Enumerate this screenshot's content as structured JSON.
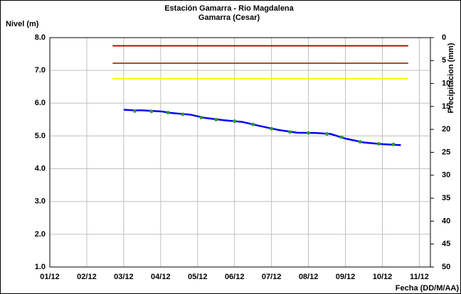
{
  "chart_data": {
    "type": "line",
    "title": "Estación Gamarra - Rio Magdalena",
    "subtitle": "Gamarra (Cesar)",
    "y_label": "Nivel (m)",
    "y2_label": "Precipitacion (mm)",
    "x_label": "Fecha (DD/M/AA)",
    "xlim": [
      1,
      11.3
    ],
    "xticks": [
      {
        "value": 1,
        "label": "01/12"
      },
      {
        "value": 2,
        "label": "02/12"
      },
      {
        "value": 3,
        "label": "03/12"
      },
      {
        "value": 4,
        "label": "04/12"
      },
      {
        "value": 5,
        "label": "05/12"
      },
      {
        "value": 6,
        "label": "06/12"
      },
      {
        "value": 7,
        "label": "07/12"
      },
      {
        "value": 8,
        "label": "08/12"
      },
      {
        "value": 9,
        "label": "09/12"
      },
      {
        "value": 10,
        "label": "10/12"
      },
      {
        "value": 11,
        "label": "11/12"
      }
    ],
    "ylim": [
      1,
      8
    ],
    "yticks": [
      {
        "value": 1,
        "label": "1.0"
      },
      {
        "value": 2,
        "label": "2.0"
      },
      {
        "value": 3,
        "label": "3.0"
      },
      {
        "value": 4,
        "label": "4.0"
      },
      {
        "value": 5,
        "label": "5.0"
      },
      {
        "value": 6,
        "label": "6.0"
      },
      {
        "value": 7,
        "label": "7.0"
      },
      {
        "value": 8,
        "label": "8.0"
      }
    ],
    "y2lim": [
      50,
      0
    ],
    "y2ticks": [
      0,
      5,
      10,
      15,
      20,
      25,
      30,
      35,
      40,
      45,
      50
    ],
    "grid": true,
    "thresholds": [
      {
        "value": 7.75,
        "color": "#cc0000",
        "x": [
          2.7,
          10.7
        ]
      },
      {
        "value": 7.22,
        "color": "#a0522d",
        "x": [
          2.7,
          10.7
        ]
      },
      {
        "value": 6.75,
        "color": "#ffff00",
        "x": [
          2.7,
          10.7
        ]
      }
    ],
    "series": [
      {
        "color": "#0000ff",
        "style": "line",
        "x": [
          3.0,
          3.3,
          3.5,
          4.0,
          4.3,
          4.8,
          5.2,
          5.7,
          6.2,
          6.7,
          7.2,
          7.7,
          8.2,
          8.6,
          9.0,
          9.5,
          10.0,
          10.5
        ],
        "values": [
          5.8,
          5.78,
          5.78,
          5.75,
          5.7,
          5.65,
          5.55,
          5.48,
          5.43,
          5.3,
          5.18,
          5.1,
          5.09,
          5.06,
          4.92,
          4.8,
          4.75,
          4.72
        ]
      },
      {
        "color": "#339933",
        "style": "markers",
        "x": [
          3.3,
          3.75,
          4.2,
          4.6,
          5.1,
          5.5,
          6.0,
          6.5,
          7.0,
          7.5,
          8.0,
          8.5,
          8.9,
          9.4,
          9.9,
          10.3
        ],
        "values": [
          5.76,
          5.75,
          5.71,
          5.66,
          5.56,
          5.5,
          5.45,
          5.35,
          5.22,
          5.12,
          5.09,
          5.06,
          4.96,
          4.82,
          4.76,
          4.74
        ]
      }
    ]
  }
}
